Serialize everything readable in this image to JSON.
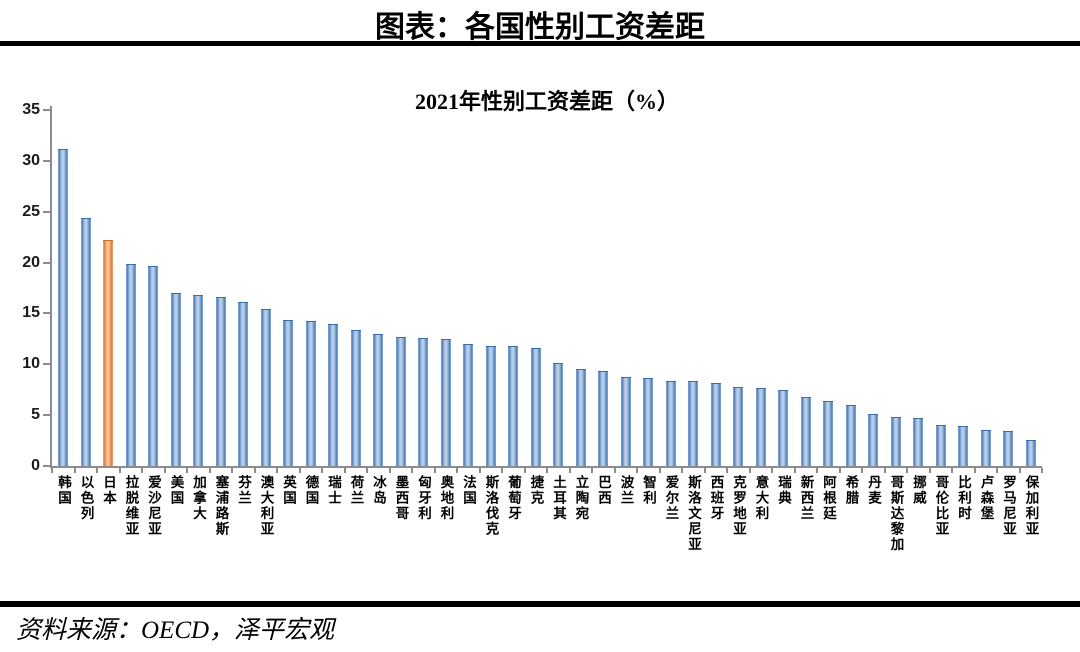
{
  "page": {
    "header_title": "图表：各国性别工资差距",
    "source_note": "资料来源：OECD，泽平宏观"
  },
  "chart_data": {
    "type": "bar",
    "title": "2021年性别工资差距（%）",
    "categories": [
      "韩国",
      "以色列",
      "日本",
      "拉脱维亚",
      "爱沙尼亚",
      "美国",
      "加拿大",
      "塞浦路斯",
      "芬兰",
      "澳大利亚",
      "英国",
      "德国",
      "瑞士",
      "荷兰",
      "冰岛",
      "墨西哥",
      "匈牙利",
      "奥地利",
      "法国",
      "斯洛伐克",
      "葡萄牙",
      "捷克",
      "土耳其",
      "立陶宛",
      "巴西",
      "波兰",
      "智利",
      "爱尔兰",
      "斯洛文尼亚",
      "西班牙",
      "克罗地亚",
      "意大利",
      "瑞典",
      "新西兰",
      "阿根廷",
      "希腊",
      "丹麦",
      "哥斯达黎加",
      "挪威",
      "哥伦比亚",
      "比利时",
      "卢森堡",
      "罗马尼亚",
      "保加利亚"
    ],
    "values": [
      31.1,
      24.3,
      22.1,
      19.8,
      19.6,
      16.9,
      16.7,
      16.5,
      16.0,
      15.3,
      14.3,
      14.2,
      13.9,
      13.3,
      12.9,
      12.6,
      12.5,
      12.4,
      11.9,
      11.7,
      11.7,
      11.5,
      10.0,
      9.4,
      9.2,
      8.7,
      8.6,
      8.3,
      8.3,
      8.1,
      7.7,
      7.6,
      7.4,
      6.7,
      6.3,
      5.9,
      5.0,
      4.7,
      4.6,
      3.9,
      3.8,
      3.4,
      3.3,
      2.5
    ],
    "highlight_category": "日本",
    "highlight_index": 2,
    "xlabel": "",
    "ylabel": "",
    "ylim": [
      0,
      35
    ],
    "yticks": [
      0,
      5,
      10,
      15,
      20,
      25,
      30,
      35
    ],
    "grid": "off",
    "legend": "none",
    "colors": {
      "bar": "#4E80BC",
      "bar_light": "#B9CDE5",
      "highlight": "#E07A33",
      "highlight_light": "#F6BD8F",
      "axis": "#8C8C8C",
      "text": "#000000"
    }
  }
}
